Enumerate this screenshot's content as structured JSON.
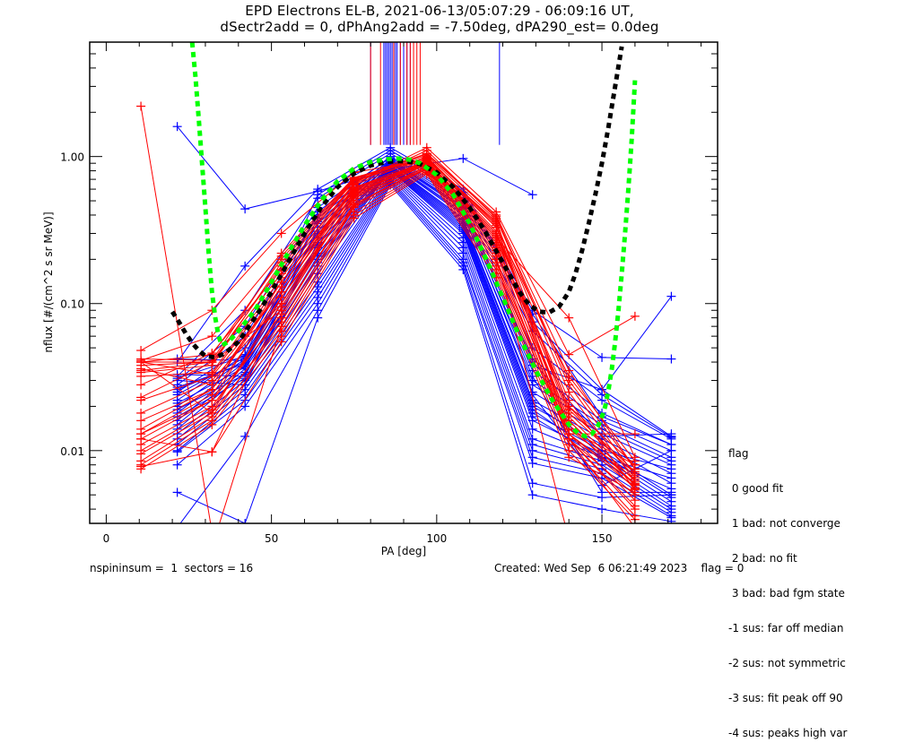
{
  "chart_data": {
    "type": "line",
    "title": "EPD Electrons EL-B, 2021-06-13/05:07:29 - 06:09:16 UT,",
    "subtitle": "dSectr2add = 0, dPhAng2add = -7.50deg, dPA290_est=   0.0deg",
    "xlabel": "PA [deg]",
    "ylabel": "nflux [#/(cm^2 s sr MeV)]",
    "xlim": [
      -5,
      185
    ],
    "ylim": [
      0.0032,
      6.0
    ],
    "yscale": "log",
    "grid": false,
    "x_ticks": [
      {
        "value": 0,
        "label": "0"
      },
      {
        "value": 50,
        "label": "50"
      },
      {
        "value": 100,
        "label": "100"
      },
      {
        "value": 150,
        "label": "150"
      }
    ],
    "x_minor_step": 10,
    "y_ticks": [
      {
        "value": 1.0,
        "label": "1.00"
      },
      {
        "value": 0.1,
        "label": "0.10"
      },
      {
        "value": 0.01,
        "label": "0.01"
      }
    ],
    "colors": {
      "red": "#ff0000",
      "blue": "#0000ff",
      "green": "#00ff00",
      "black": "#000000"
    },
    "red_pa": [
      10.5,
      32,
      53,
      75,
      97,
      118,
      140,
      160
    ],
    "blue_pa": [
      21.5,
      42,
      64,
      86,
      108,
      129,
      150,
      171
    ],
    "red_series": [
      [
        2.2,
        0.0028,
        null,
        null,
        null,
        null,
        null,
        null
      ],
      [
        0.048,
        0.09,
        0.3,
        0.78,
        0.95,
        0.33,
        0.032,
        0.0085
      ],
      [
        0.04,
        0.045,
        0.2,
        0.7,
        1.05,
        0.4,
        0.035,
        0.0075
      ],
      [
        0.038,
        0.04,
        0.16,
        0.65,
        1.1,
        0.38,
        0.028,
        0.0068
      ],
      [
        0.041,
        0.06,
        0.22,
        0.72,
        0.98,
        0.35,
        0.025,
        0.0062
      ],
      [
        0.035,
        0.04,
        0.09,
        0.55,
        0.92,
        0.3,
        0.02,
        0.008
      ],
      [
        0.023,
        0.04,
        0.18,
        0.68,
        0.96,
        0.36,
        0.018,
        0.007
      ],
      [
        0.022,
        0.032,
        0.12,
        0.6,
        0.93,
        0.28,
        0.016,
        0.0058
      ],
      [
        0.018,
        0.03,
        0.1,
        0.58,
        0.9,
        0.26,
        0.015,
        0.0055
      ],
      [
        0.014,
        0.026,
        0.14,
        0.62,
        0.88,
        0.24,
        0.013,
        0.006
      ],
      [
        0.013,
        0.024,
        0.11,
        0.5,
        0.86,
        0.22,
        0.012,
        0.005
      ],
      [
        0.012,
        0.022,
        0.08,
        0.52,
        0.85,
        0.2,
        0.013,
        0.0046
      ],
      [
        0.011,
        0.02,
        0.085,
        0.48,
        0.84,
        0.19,
        0.012,
        0.0042
      ],
      [
        0.0095,
        0.018,
        0.07,
        0.45,
        0.82,
        0.18,
        0.012,
        0.004
      ],
      [
        0.008,
        0.016,
        0.065,
        0.42,
        0.8,
        0.17,
        0.011,
        0.0036
      ],
      [
        0.0075,
        0.015,
        0.06,
        0.4,
        0.78,
        0.16,
        0.01,
        0.0034
      ],
      [
        0.0078,
        0.0098,
        0.055,
        0.38,
        0.76,
        0.15,
        0.009,
        0.0052
      ],
      [
        0.04,
        0.04,
        0.16,
        0.66,
        1.15,
        0.42,
        0.045,
        0.082
      ],
      [
        0.04,
        0.018,
        0.11,
        0.56,
        0.9,
        0.28,
        0.08,
        0.009
      ],
      [
        0.032,
        0.034,
        0.15,
        0.64,
        1.0,
        0.34,
        0.014,
        0.008
      ],
      [
        0.028,
        0.046,
        0.17,
        0.7,
        1.02,
        0.37,
        0.013,
        0.013
      ],
      [
        0.016,
        0.026,
        0.13,
        0.61,
        0.97,
        0.31,
        0.02,
        0.0066
      ],
      [
        0.012,
        0.0098,
        0.095,
        0.54,
        0.89,
        0.25,
        0.016,
        0.0059
      ],
      [
        null,
        0.0022,
        0.07,
        0.46,
        0.87,
        0.21,
        0.0025,
        null
      ],
      [
        0.04,
        0.033,
        0.14,
        0.6,
        0.94,
        0.3,
        0.012,
        0.003
      ],
      [
        0.034,
        0.038,
        0.19,
        0.69,
        0.99,
        0.33,
        0.017,
        0.0062
      ],
      [
        0.013,
        0.022,
        0.12,
        0.57,
        0.91,
        0.27,
        0.019,
        0.0072
      ],
      [
        0.01,
        0.019,
        0.1,
        0.53,
        0.88,
        0.23,
        0.014,
        0.0064
      ],
      [
        0.0085,
        0.017,
        0.075,
        0.47,
        0.83,
        0.2,
        0.013,
        0.0056
      ],
      [
        0.042,
        0.041,
        0.21,
        0.71,
        1.04,
        0.39,
        0.03,
        0.0075
      ],
      [
        0.036,
        0.028,
        0.13,
        0.59,
        0.92,
        0.29,
        0.022,
        0.0054
      ]
    ],
    "blue_series": [
      [
        1.6,
        0.44,
        0.58,
        0.82,
        0.97,
        0.55,
        null,
        null
      ],
      [
        0.04,
        0.18,
        0.6,
        1.15,
        0.6,
        0.09,
        0.043,
        0.042
      ],
      [
        0.032,
        0.09,
        0.52,
        1.05,
        0.55,
        0.075,
        0.026,
        0.0125
      ],
      [
        0.03,
        0.07,
        0.45,
        0.98,
        0.5,
        0.05,
        0.022,
        0.012
      ],
      [
        0.028,
        0.06,
        0.4,
        0.95,
        0.46,
        0.042,
        0.018,
        0.011
      ],
      [
        0.025,
        0.05,
        0.35,
        0.92,
        0.42,
        0.035,
        0.016,
        0.01
      ],
      [
        0.022,
        0.045,
        0.3,
        0.9,
        0.4,
        0.03,
        0.015,
        0.009
      ],
      [
        0.02,
        0.042,
        0.28,
        0.88,
        0.38,
        0.025,
        0.013,
        0.008
      ],
      [
        0.018,
        0.04,
        0.25,
        0.86,
        0.36,
        0.022,
        0.012,
        0.007
      ],
      [
        0.016,
        0.038,
        0.22,
        0.84,
        0.34,
        0.02,
        0.011,
        0.006
      ],
      [
        0.015,
        0.036,
        0.2,
        0.82,
        0.32,
        0.018,
        0.01,
        0.005
      ],
      [
        0.014,
        0.034,
        0.18,
        0.8,
        0.3,
        0.016,
        0.0095,
        0.0048
      ],
      [
        0.013,
        0.03,
        0.16,
        0.78,
        0.28,
        0.014,
        0.009,
        0.0045
      ],
      [
        0.012,
        0.028,
        0.14,
        0.76,
        0.26,
        0.012,
        0.0085,
        0.0042
      ],
      [
        0.011,
        0.026,
        0.13,
        0.74,
        0.24,
        0.011,
        0.008,
        0.004
      ],
      [
        0.01,
        0.024,
        0.12,
        0.72,
        0.22,
        0.01,
        0.0075,
        0.0038
      ],
      [
        0.0098,
        0.022,
        0.11,
        0.7,
        0.2,
        0.009,
        0.007,
        0.0036
      ],
      [
        0.008,
        0.02,
        0.1,
        0.68,
        0.19,
        0.0082,
        0.0065,
        0.0035
      ],
      [
        0.003,
        0.0125,
        0.09,
        0.66,
        0.18,
        0.006,
        0.0048,
        0.005
      ],
      [
        0.033,
        0.032,
        0.33,
        0.93,
        0.44,
        0.032,
        0.0052,
        0.0052
      ],
      [
        0.03,
        0.028,
        0.26,
        0.87,
        0.37,
        0.024,
        0.0058,
        0.01
      ],
      [
        0.026,
        0.04,
        0.38,
        0.96,
        0.48,
        0.04,
        0.0125,
        0.013
      ],
      [
        0.024,
        0.043,
        0.31,
        0.91,
        0.41,
        0.028,
        0.014,
        0.0085
      ],
      [
        0.021,
        0.037,
        0.24,
        0.85,
        0.35,
        0.021,
        0.01,
        0.0075
      ],
      [
        0.019,
        0.033,
        0.21,
        0.83,
        0.33,
        0.019,
        0.009,
        0.0065
      ],
      [
        0.017,
        0.031,
        0.19,
        0.81,
        0.31,
        0.017,
        0.0088,
        0.0055
      ],
      [
        0.042,
        0.041,
        0.42,
        1.0,
        0.52,
        0.065,
        0.024,
        0.0123
      ],
      [
        0.031,
        0.044,
        0.55,
        1.1,
        0.57,
        0.085,
        0.017,
        0.011
      ],
      [
        0.027,
        0.039,
        0.36,
        0.94,
        0.45,
        0.038,
        0.026,
        0.112
      ],
      [
        0.0052,
        0.0032,
        0.08,
        0.64,
        0.17,
        0.005,
        0.004,
        0.0033
      ]
    ],
    "red_spikes_pa": [
      80,
      83,
      87,
      89,
      91,
      92,
      93,
      94,
      95
    ],
    "blue_spikes_pa": [
      80,
      84,
      84.5,
      85,
      85.5,
      86,
      86.5,
      87,
      87.5,
      88,
      89,
      90,
      91,
      92,
      119
    ],
    "fits": [
      {
        "name": "green-fit",
        "color": "#00ff00",
        "x": [
          26,
          27,
          28,
          29,
          30,
          31,
          32,
          33,
          34,
          35,
          37,
          40,
          45,
          50,
          55,
          60,
          65,
          70,
          75,
          80,
          85,
          88,
          90,
          92,
          95,
          100,
          105,
          110,
          115,
          120,
          125,
          130,
          135,
          140,
          143,
          145,
          147,
          149,
          150,
          151,
          152,
          153,
          154,
          155,
          156,
          157,
          158,
          159,
          160
        ],
        "y": [
          6.0,
          3.5,
          1.8,
          0.9,
          0.45,
          0.22,
          0.12,
          0.08,
          0.06,
          0.052,
          0.055,
          0.065,
          0.09,
          0.14,
          0.22,
          0.34,
          0.5,
          0.68,
          0.83,
          0.92,
          0.96,
          0.97,
          0.965,
          0.95,
          0.9,
          0.75,
          0.55,
          0.35,
          0.2,
          0.11,
          0.06,
          0.035,
          0.022,
          0.015,
          0.013,
          0.0125,
          0.013,
          0.015,
          0.017,
          0.02,
          0.026,
          0.036,
          0.055,
          0.09,
          0.16,
          0.3,
          0.6,
          1.3,
          3.3
        ]
      },
      {
        "name": "black-fit",
        "color": "#000000",
        "x": [
          20,
          22,
          24,
          26,
          28,
          30,
          33,
          36,
          40,
          45,
          50,
          55,
          60,
          65,
          70,
          75,
          80,
          85,
          88,
          90,
          92,
          95,
          100,
          105,
          110,
          115,
          120,
          125,
          128,
          131,
          134,
          137,
          140,
          142,
          144,
          146,
          148,
          150,
          152,
          154,
          156
        ],
        "y": [
          0.088,
          0.075,
          0.063,
          0.054,
          0.048,
          0.044,
          0.043,
          0.046,
          0.055,
          0.08,
          0.12,
          0.19,
          0.3,
          0.45,
          0.62,
          0.77,
          0.87,
          0.92,
          0.93,
          0.93,
          0.92,
          0.89,
          0.78,
          0.62,
          0.45,
          0.3,
          0.19,
          0.12,
          0.098,
          0.088,
          0.087,
          0.095,
          0.12,
          0.16,
          0.23,
          0.35,
          0.55,
          0.9,
          1.6,
          3.0,
          5.6
        ]
      }
    ]
  },
  "legend": {
    "title": "flag",
    "items": [
      " 0 good fit",
      " 1 bad: not converge",
      " 2 bad: no fit",
      " 3 bad: bad fgm state",
      "-1 sus: far off median",
      "-2 sus: not symmetric",
      "-3 sus: fit peak off 90",
      "-4 sus: peaks high var"
    ]
  },
  "footer": {
    "left": "nspininsum =  1  sectors = 16",
    "right": "Created: Wed Sep  6 06:21:49 2023    flag = 0"
  }
}
